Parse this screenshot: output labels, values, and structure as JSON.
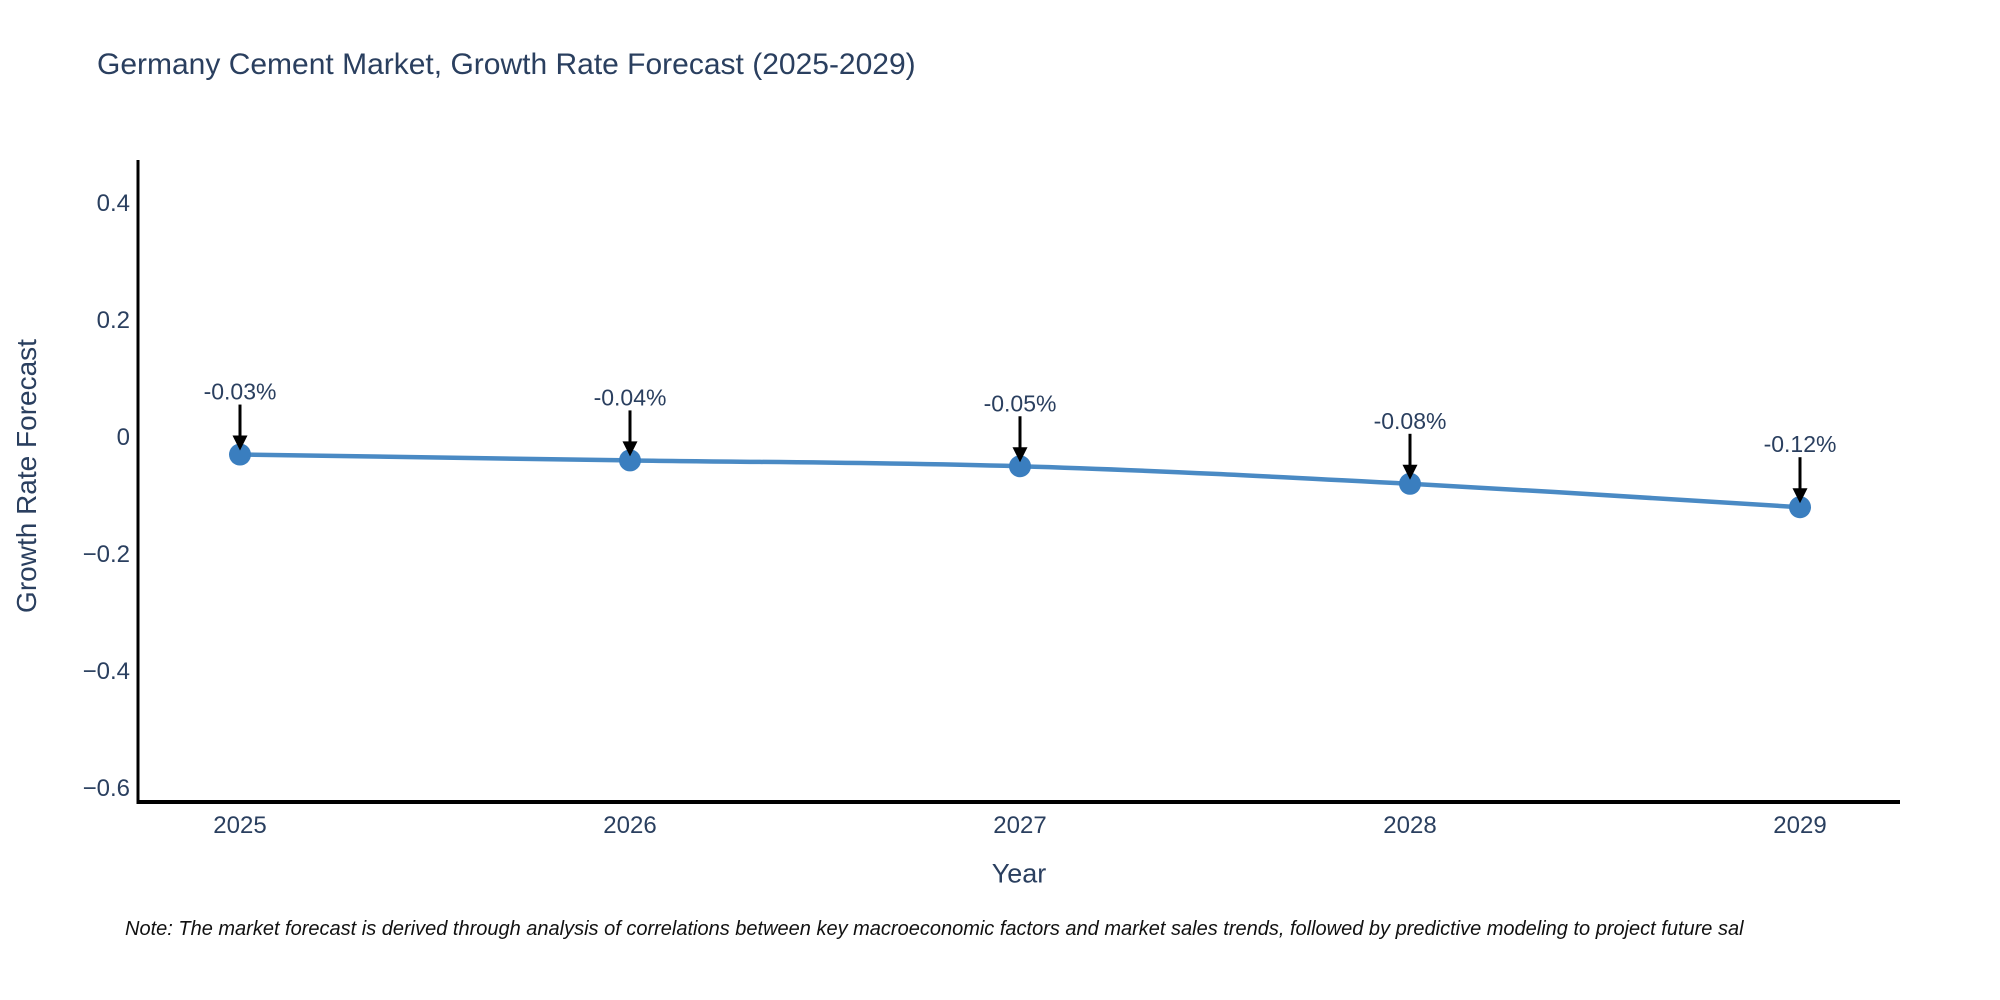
{
  "chart_data": {
    "type": "line",
    "title": "Germany Cement Market, Growth Rate Forecast (2025-2029)",
    "xlabel": "Year",
    "ylabel": "Growth Rate Forecast",
    "categories": [
      "2025",
      "2026",
      "2027",
      "2028",
      "2029"
    ],
    "values": [
      -0.03,
      -0.04,
      -0.05,
      -0.08,
      -0.12
    ],
    "point_labels": [
      "-0.03%",
      "-0.04%",
      "-0.05%",
      "-0.08%",
      "-0.12%"
    ],
    "yticks": [
      {
        "value": 0.4,
        "label": "0.4"
      },
      {
        "value": 0.2,
        "label": "0.2"
      },
      {
        "value": 0,
        "label": "0"
      },
      {
        "value": -0.2,
        "label": "−0.2"
      },
      {
        "value": -0.4,
        "label": "−0.4"
      },
      {
        "value": -0.6,
        "label": "−0.6"
      }
    ],
    "ylim": [
      -0.63,
      0.46
    ],
    "grid": false,
    "legend": "none",
    "colors": {
      "line": "#4a8ac4",
      "marker": "#3a7ebf",
      "axis": "#000000",
      "text": "#2a3f5f",
      "annotation_arrow": "#000000"
    }
  },
  "note": "Note: The market forecast is derived through analysis of correlations between key macroeconomic factors and market sales trends, followed by predictive modeling to project future sal"
}
